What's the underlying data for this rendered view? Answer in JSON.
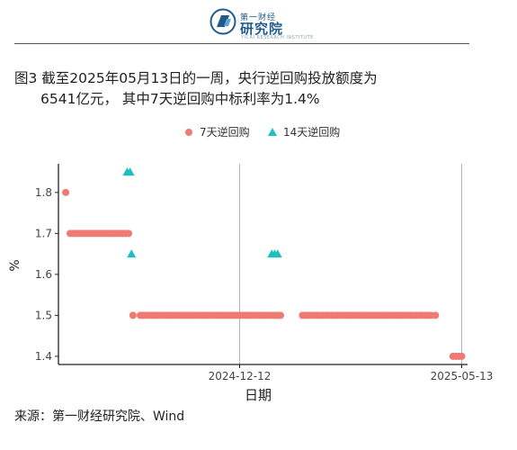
{
  "logo": {
    "small": "第一财经",
    "main": "研究院",
    "sub": "YICAI RESEARCH INSTITUTE"
  },
  "title": {
    "line1": "图3  截至2025年05月13日的一周，央行逆回购投放额度为",
    "line2": "6541亿元， 其中7天逆回购中标利率为1.4%"
  },
  "source": "来源：第一财经研究院、Wind",
  "chart_data": {
    "type": "scatter",
    "xlabel": "日期",
    "ylabel": "%",
    "ylim": [
      1.38,
      1.87
    ],
    "yticks": [
      1.4,
      1.5,
      1.6,
      1.7,
      1.8
    ],
    "xlim": [
      "2024-08-10",
      "2025-05-17"
    ],
    "xticks": [
      "2024-12-12",
      "2025-05-13"
    ],
    "vlines": [
      "2024-12-12",
      "2025-05-13"
    ],
    "legend": "top",
    "series": [
      {
        "name": "7天逆回购",
        "color": "#ee7a73",
        "marker": "circle",
        "points": [
          [
            "2024-08-15",
            1.8
          ],
          [
            "2024-08-18",
            1.7
          ],
          [
            "2024-08-20",
            1.7
          ],
          [
            "2024-08-22",
            1.7
          ],
          [
            "2024-08-24",
            1.7
          ],
          [
            "2024-08-26",
            1.7
          ],
          [
            "2024-08-28",
            1.7
          ],
          [
            "2024-08-30",
            1.7
          ],
          [
            "2024-09-01",
            1.7
          ],
          [
            "2024-09-03",
            1.7
          ],
          [
            "2024-09-05",
            1.7
          ],
          [
            "2024-09-07",
            1.7
          ],
          [
            "2024-09-09",
            1.7
          ],
          [
            "2024-09-11",
            1.7
          ],
          [
            "2024-09-13",
            1.7
          ],
          [
            "2024-09-15",
            1.7
          ],
          [
            "2024-09-17",
            1.7
          ],
          [
            "2024-09-19",
            1.7
          ],
          [
            "2024-09-21",
            1.7
          ],
          [
            "2024-09-23",
            1.7
          ],
          [
            "2024-09-25",
            1.7
          ],
          [
            "2024-09-27",
            1.7
          ],
          [
            "2024-09-30",
            1.5
          ],
          [
            "2024-10-05",
            1.5
          ],
          [
            "2024-10-07",
            1.5
          ],
          [
            "2024-10-09",
            1.5
          ],
          [
            "2024-10-11",
            1.5
          ],
          [
            "2024-10-13",
            1.5
          ],
          [
            "2024-10-15",
            1.5
          ],
          [
            "2024-10-17",
            1.5
          ],
          [
            "2024-10-19",
            1.5
          ],
          [
            "2024-10-21",
            1.5
          ],
          [
            "2024-10-23",
            1.5
          ],
          [
            "2024-10-25",
            1.5
          ],
          [
            "2024-10-27",
            1.5
          ],
          [
            "2024-10-29",
            1.5
          ],
          [
            "2024-10-31",
            1.5
          ],
          [
            "2024-11-02",
            1.5
          ],
          [
            "2024-11-04",
            1.5
          ],
          [
            "2024-11-06",
            1.5
          ],
          [
            "2024-11-08",
            1.5
          ],
          [
            "2024-11-10",
            1.5
          ],
          [
            "2024-11-12",
            1.5
          ],
          [
            "2024-11-14",
            1.5
          ],
          [
            "2024-11-16",
            1.5
          ],
          [
            "2024-11-18",
            1.5
          ],
          [
            "2024-11-20",
            1.5
          ],
          [
            "2024-11-22",
            1.5
          ],
          [
            "2024-11-24",
            1.5
          ],
          [
            "2024-11-26",
            1.5
          ],
          [
            "2024-11-28",
            1.5
          ],
          [
            "2024-11-30",
            1.5
          ],
          [
            "2024-12-02",
            1.5
          ],
          [
            "2024-12-04",
            1.5
          ],
          [
            "2024-12-06",
            1.5
          ],
          [
            "2024-12-08",
            1.5
          ],
          [
            "2024-12-10",
            1.5
          ],
          [
            "2024-12-12",
            1.5
          ],
          [
            "2024-12-14",
            1.5
          ],
          [
            "2024-12-16",
            1.5
          ],
          [
            "2024-12-18",
            1.5
          ],
          [
            "2024-12-20",
            1.5
          ],
          [
            "2024-12-22",
            1.5
          ],
          [
            "2024-12-24",
            1.5
          ],
          [
            "2024-12-26",
            1.5
          ],
          [
            "2024-12-28",
            1.5
          ],
          [
            "2024-12-30",
            1.5
          ],
          [
            "2025-01-01",
            1.5
          ],
          [
            "2025-01-03",
            1.5
          ],
          [
            "2025-01-05",
            1.5
          ],
          [
            "2025-01-07",
            1.5
          ],
          [
            "2025-01-09",
            1.5
          ],
          [
            "2025-01-24",
            1.5
          ],
          [
            "2025-01-26",
            1.5
          ],
          [
            "2025-01-28",
            1.5
          ],
          [
            "2025-01-30",
            1.5
          ],
          [
            "2025-02-01",
            1.5
          ],
          [
            "2025-02-03",
            1.5
          ],
          [
            "2025-02-05",
            1.5
          ],
          [
            "2025-02-07",
            1.5
          ],
          [
            "2025-02-09",
            1.5
          ],
          [
            "2025-02-11",
            1.5
          ],
          [
            "2025-02-13",
            1.5
          ],
          [
            "2025-02-15",
            1.5
          ],
          [
            "2025-02-17",
            1.5
          ],
          [
            "2025-02-19",
            1.5
          ],
          [
            "2025-02-21",
            1.5
          ],
          [
            "2025-02-23",
            1.5
          ],
          [
            "2025-02-25",
            1.5
          ],
          [
            "2025-02-27",
            1.5
          ],
          [
            "2025-03-01",
            1.5
          ],
          [
            "2025-03-03",
            1.5
          ],
          [
            "2025-03-05",
            1.5
          ],
          [
            "2025-03-07",
            1.5
          ],
          [
            "2025-03-09",
            1.5
          ],
          [
            "2025-03-11",
            1.5
          ],
          [
            "2025-03-13",
            1.5
          ],
          [
            "2025-03-15",
            1.5
          ],
          [
            "2025-03-17",
            1.5
          ],
          [
            "2025-03-19",
            1.5
          ],
          [
            "2025-03-21",
            1.5
          ],
          [
            "2025-03-23",
            1.5
          ],
          [
            "2025-03-25",
            1.5
          ],
          [
            "2025-03-27",
            1.5
          ],
          [
            "2025-03-29",
            1.5
          ],
          [
            "2025-03-31",
            1.5
          ],
          [
            "2025-04-02",
            1.5
          ],
          [
            "2025-04-04",
            1.5
          ],
          [
            "2025-04-06",
            1.5
          ],
          [
            "2025-04-08",
            1.5
          ],
          [
            "2025-04-10",
            1.5
          ],
          [
            "2025-04-12",
            1.5
          ],
          [
            "2025-04-14",
            1.5
          ],
          [
            "2025-04-16",
            1.5
          ],
          [
            "2025-04-18",
            1.5
          ],
          [
            "2025-04-20",
            1.5
          ],
          [
            "2025-04-22",
            1.5
          ],
          [
            "2025-04-25",
            1.5
          ],
          [
            "2025-05-07",
            1.4
          ],
          [
            "2025-05-09",
            1.4
          ],
          [
            "2025-05-11",
            1.4
          ],
          [
            "2025-05-13",
            1.4
          ]
        ]
      },
      {
        "name": "14天逆回购",
        "color": "#1fbfbf",
        "marker": "triangle",
        "points": [
          [
            "2024-09-26",
            1.85
          ],
          [
            "2024-09-28",
            1.85
          ],
          [
            "2024-09-29",
            1.65
          ],
          [
            "2025-01-03",
            1.65
          ],
          [
            "2025-01-05",
            1.65
          ],
          [
            "2025-01-07",
            1.65
          ]
        ]
      }
    ]
  }
}
